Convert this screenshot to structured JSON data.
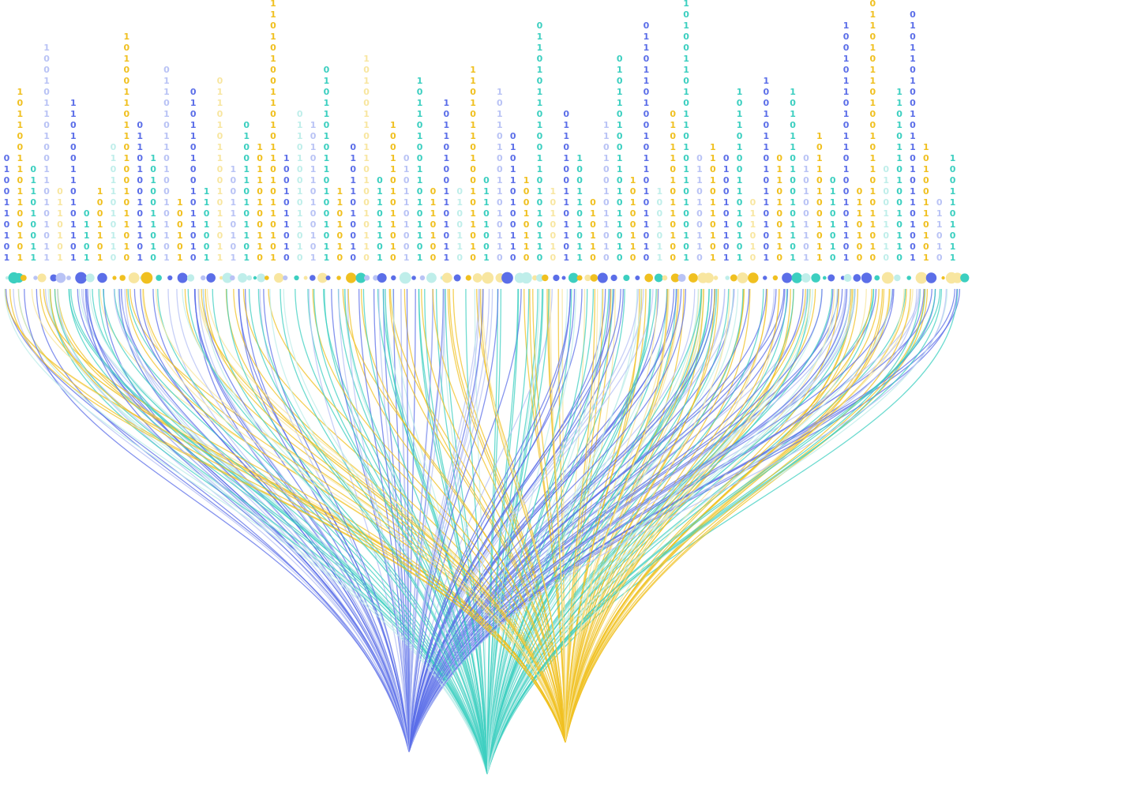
{
  "columns": [
    {
      "digits": "0100110101",
      "color": "#5b6ee8"
    },
    {
      "digits": "1011001101100101",
      "color": "#f0c020"
    },
    {
      "digits": "011010011",
      "color": "#3ccfc0"
    },
    {
      "digits": "10010110100110101011",
      "color": "#b9c3f5"
    },
    {
      "digits": "0110101",
      "color": "#f8e6a0"
    },
    {
      "digits": "110100110101101",
      "color": "#5b6ee8"
    },
    {
      "digits": "01101",
      "color": "#3ccfc0"
    },
    {
      "digits": "1001101",
      "color": "#f0c020"
    },
    {
      "digits": "01011010110",
      "color": "#bfeeea"
    },
    {
      "digits": "101001101101001011010",
      "color": "#f0c020"
    },
    {
      "digits": "0110100101101",
      "color": "#5b6ee8"
    },
    {
      "digits": "1010011010",
      "color": "#3ccfc0"
    },
    {
      "digits": "011010110100101101",
      "color": "#b9c3f5"
    },
    {
      "digits": "100101",
      "color": "#f0c020"
    },
    {
      "digits": "0101101001011010",
      "color": "#5b6ee8"
    },
    {
      "digits": "1101001",
      "color": "#3ccfc0"
    },
    {
      "digits": "01101011001011011",
      "color": "#f8e6a0"
    },
    {
      "digits": "100110101",
      "color": "#b9c3f5"
    },
    {
      "digits": "0100110101101",
      "color": "#3ccfc0"
    },
    {
      "digits": "10110100110",
      "color": "#f0c020"
    },
    {
      "digits": "0110101001101011010110101",
      "color": "#f0c020"
    },
    {
      "digits": "1001011010",
      "color": "#5b6ee8"
    },
    {
      "digits": "01101001011010",
      "color": "#bfeeea"
    },
    {
      "digits": "1010110100101",
      "color": "#b9c3f5"
    },
    {
      "digits": "010110101101001011",
      "color": "#3ccfc0"
    },
    {
      "digits": "1101010",
      "color": "#f0c020"
    },
    {
      "digits": "01011010010",
      "color": "#5b6ee8"
    },
    {
      "digits": "1010011011010010110",
      "color": "#f8e6a0"
    },
    {
      "digits": "01101101",
      "color": "#3ccfc0"
    },
    {
      "digits": "1001101011010",
      "color": "#f0c020"
    },
    {
      "digits": "0101101001",
      "color": "#b9c3f5"
    },
    {
      "digits": "10110100110101101",
      "color": "#3ccfc0"
    },
    {
      "digits": "0110100",
      "color": "#f0c020"
    },
    {
      "digits": "101101001101011",
      "color": "#5b6ee8"
    },
    {
      "digits": "0100110",
      "color": "#bfeeea"
    },
    {
      "digits": "110101101001011010",
      "color": "#f0c020"
    },
    {
      "digits": "01101001",
      "color": "#3ccfc0"
    },
    {
      "digits": "1011010011010110",
      "color": "#b9c3f5"
    },
    {
      "digits": "010110100110",
      "color": "#5b6ee8"
    },
    {
      "digits": "10010110",
      "color": "#f0c020"
    },
    {
      "digits": "0110101101001101010110",
      "color": "#3ccfc0"
    },
    {
      "digits": "1010010",
      "color": "#f8e6a0"
    },
    {
      "digits": "01101001101101",
      "color": "#5b6ee8"
    },
    {
      "digits": "1001101011",
      "color": "#3ccfc0"
    },
    {
      "digits": "010110",
      "color": "#f0c020"
    },
    {
      "digits": "1101001011010",
      "color": "#b9c3f5"
    },
    {
      "digits": "0101101001101011010",
      "color": "#3ccfc0"
    },
    {
      "digits": "10100110",
      "color": "#f0c020"
    },
    {
      "digits": "0110110100101101011010",
      "color": "#5b6ee8"
    },
    {
      "digits": "1001011",
      "color": "#bfeeea"
    },
    {
      "digits": "01011010110100",
      "color": "#f0c020"
    },
    {
      "digits": "101001101011010110100101",
      "color": "#3ccfc0"
    },
    {
      "digits": "0110100110",
      "color": "#b9c3f5"
    },
    {
      "digits": "11010110101",
      "color": "#f0c020"
    },
    {
      "digits": "0100101101",
      "color": "#5b6ee8"
    },
    {
      "digits": "1011010011010101",
      "color": "#3ccfc0"
    },
    {
      "digits": "011010",
      "color": "#f8e6a0"
    },
    {
      "digits": "10010110101101001",
      "color": "#5b6ee8"
    },
    {
      "digits": "0110100110",
      "color": "#f0c020"
    },
    {
      "digits": "1010110100101101",
      "color": "#3ccfc0"
    },
    {
      "digits": "0101001101",
      "color": "#b9c3f5"
    },
    {
      "digits": "101101001011",
      "color": "#f0c020"
    },
    {
      "digits": "01101010",
      "color": "#3ccfc0"
    },
    {
      "digits": "1001011010110100101101",
      "color": "#5b6ee8"
    },
    {
      "digits": "0110100",
      "color": "#f0c020"
    },
    {
      "digits": "1011010110100101101011010",
      "color": "#f0c020"
    },
    {
      "digits": "010011010",
      "color": "#bfeeea"
    },
    {
      "digits": "1101011010010110",
      "color": "#3ccfc0"
    },
    {
      "digits": "01011010010110101101001",
      "color": "#5b6ee8"
    },
    {
      "digits": "10100110101",
      "color": "#f0c020"
    },
    {
      "digits": "011010",
      "color": "#b9c3f5"
    },
    {
      "digits": "1001101011",
      "color": "#3ccfc0"
    }
  ]
}
